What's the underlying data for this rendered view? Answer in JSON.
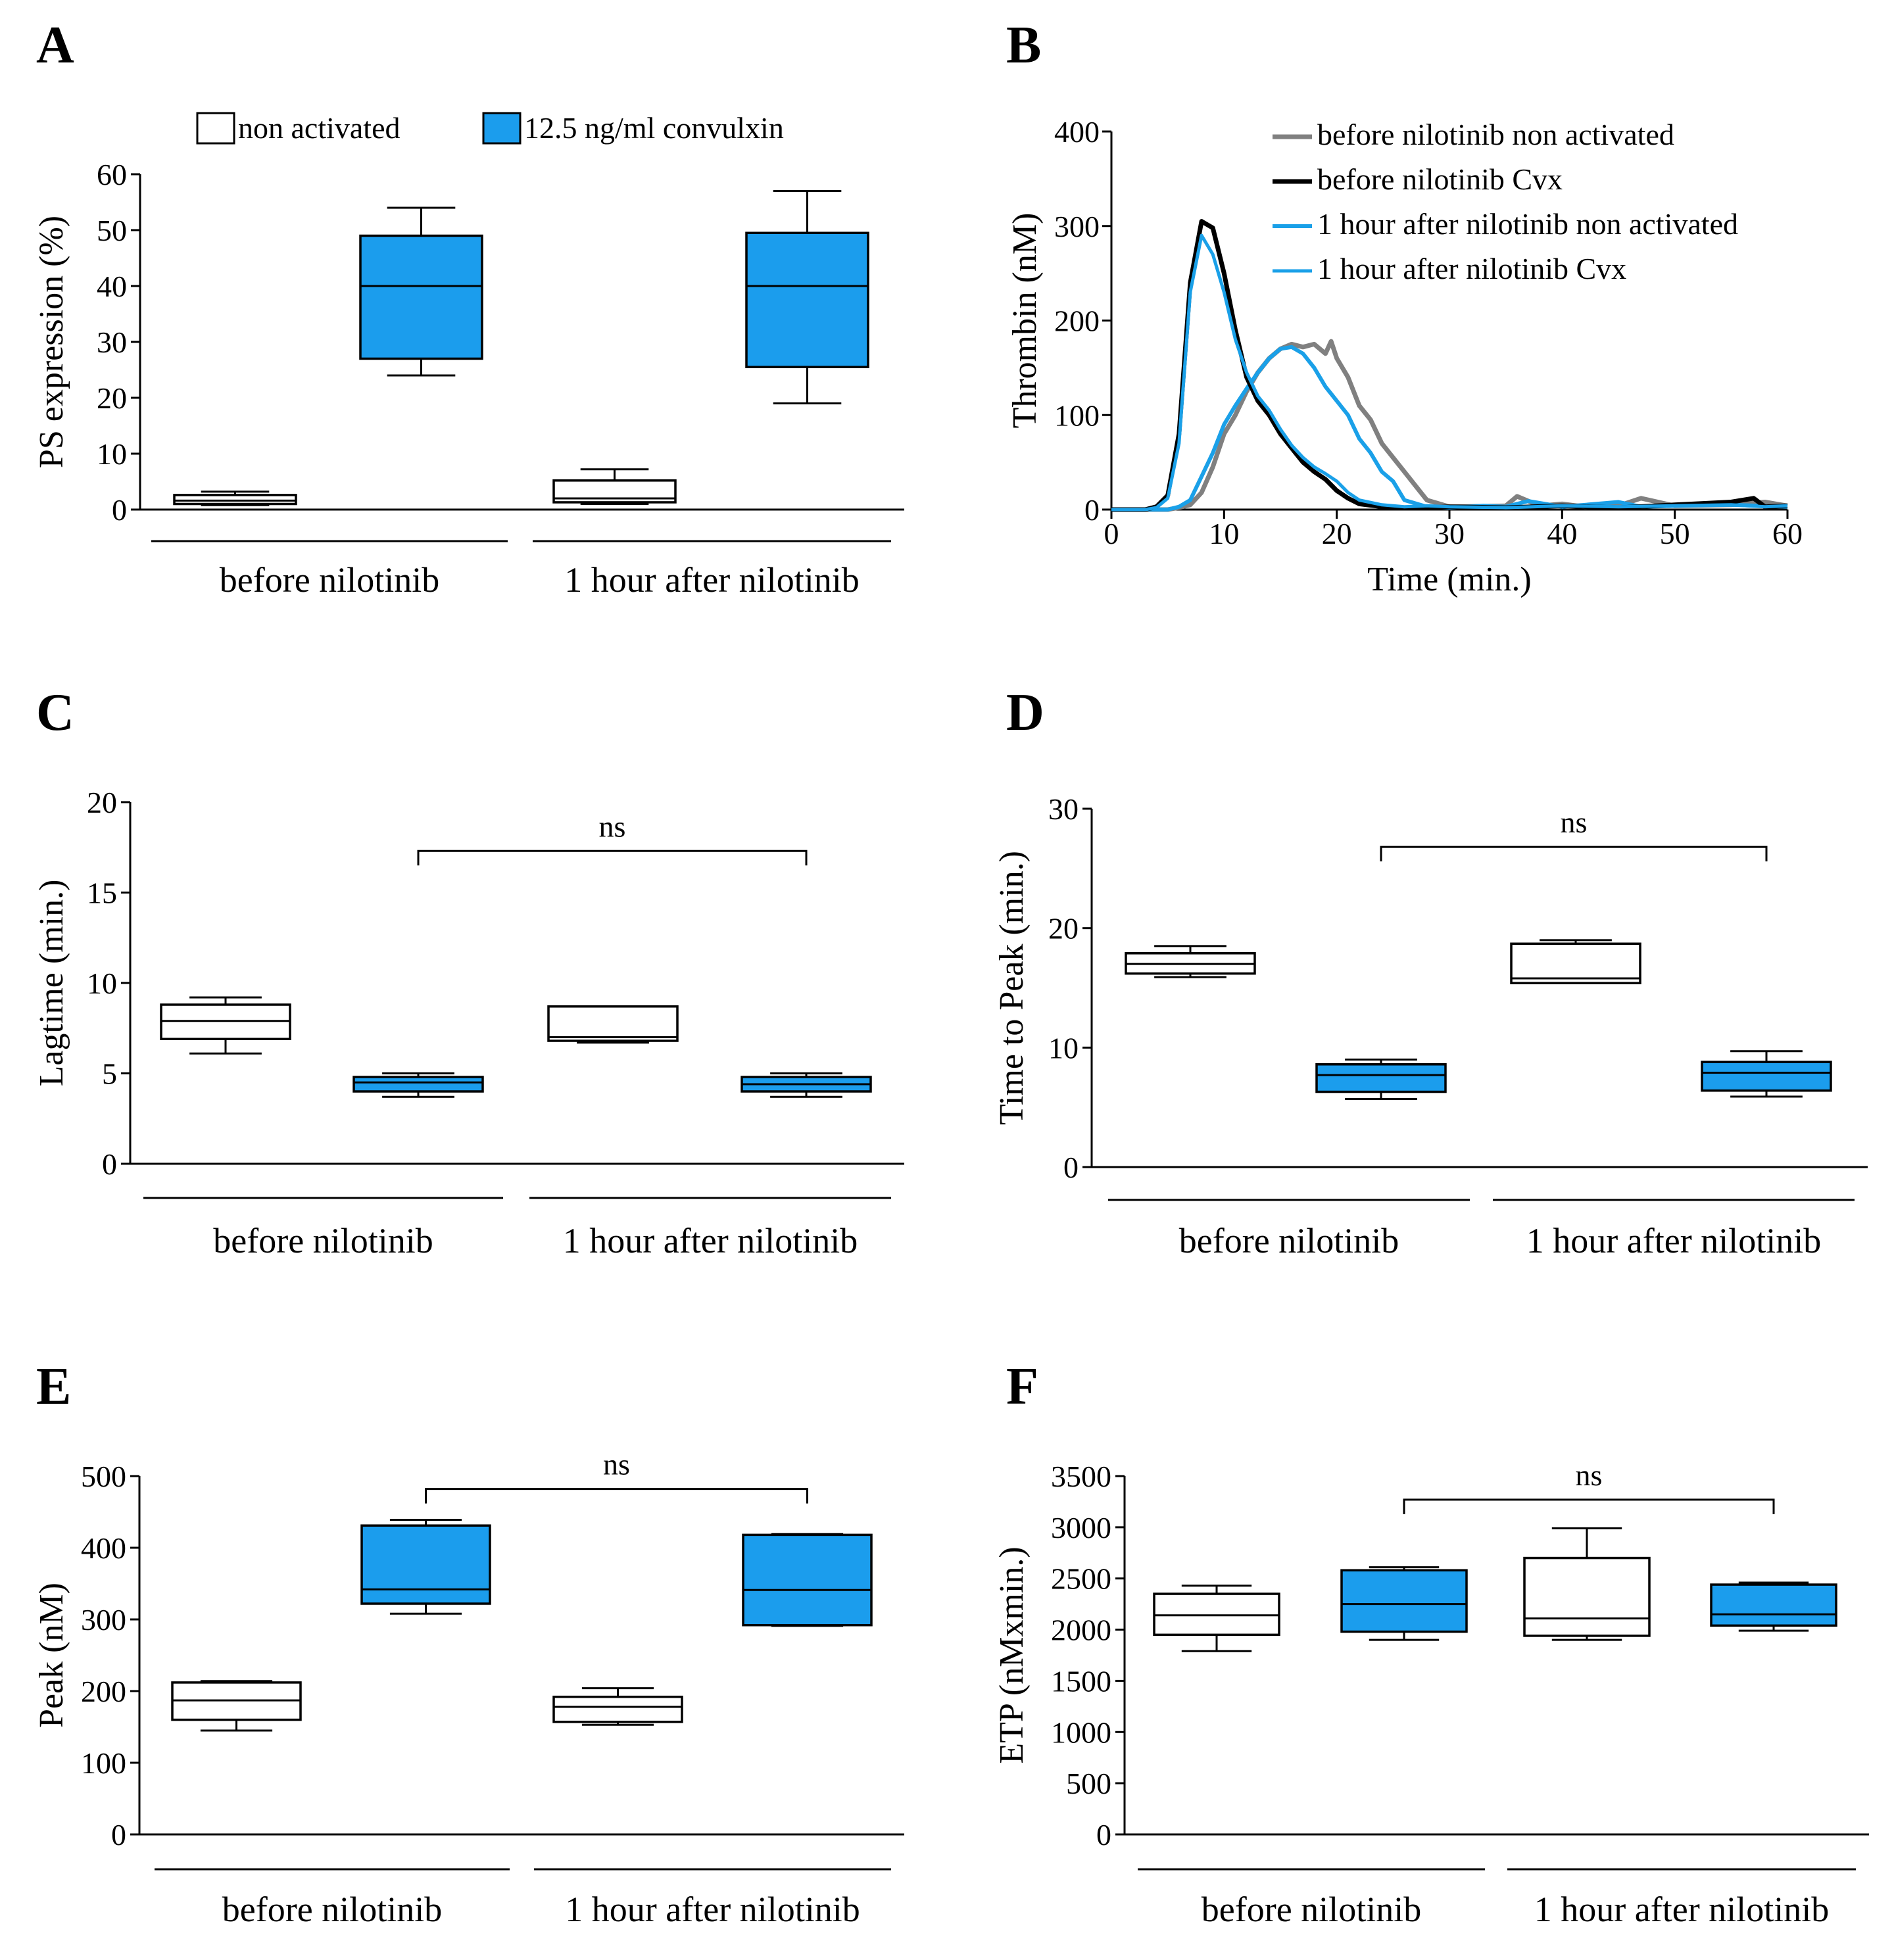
{
  "figure": {
    "colors": {
      "blue": "#1b9ded",
      "black": "#000000",
      "white": "#ffffff",
      "gray": "#808080",
      "line_blue": "#1aa0e8"
    }
  },
  "chart_data": [
    {
      "id": "A",
      "type": "box",
      "panel": "A",
      "ylabel": "PS expression (%)",
      "ylim": [
        0,
        60
      ],
      "yticks": [
        0,
        10,
        20,
        30,
        40,
        50,
        60
      ],
      "legend": [
        {
          "label": "non activated",
          "fill": "white"
        },
        {
          "label": "12.5 ng/ml convulxin",
          "fill": "blue"
        }
      ],
      "groups": [
        "before nilotinib",
        "1 hour after nilotinib"
      ],
      "boxes": [
        {
          "name": "before nilotinib non activated",
          "fill": "white",
          "min": 0.8,
          "q1": 1.0,
          "median": 1.6,
          "q3": 2.6,
          "max": 3.2
        },
        {
          "name": "before nilotinib convulxin",
          "fill": "blue",
          "min": 24,
          "q1": 27,
          "median": 40,
          "q3": 49,
          "max": 54
        },
        {
          "name": "1 hour after nilotinib non activated",
          "fill": "white",
          "min": 1,
          "q1": 1.3,
          "median": 2.0,
          "q3": 5.2,
          "max": 7.2
        },
        {
          "name": "1 hour after nilotinib convulxin",
          "fill": "blue",
          "min": 19,
          "q1": 25.5,
          "median": 40,
          "q3": 49.5,
          "max": 57
        }
      ]
    },
    {
      "id": "B",
      "type": "line",
      "panel": "B",
      "ylabel": "Thrombin (nM)",
      "xlabel": "Time (min.)",
      "xlim": [
        0,
        60
      ],
      "ylim": [
        0,
        400
      ],
      "xticks": [
        0,
        10,
        20,
        30,
        40,
        50,
        60
      ],
      "yticks": [
        0,
        100,
        200,
        300,
        400
      ],
      "series": [
        {
          "name": "before nilotinib non activated",
          "color": "gray",
          "width": 7,
          "x": [
            0,
            3,
            5,
            6,
            7,
            8,
            9,
            10,
            11,
            12,
            13,
            14,
            15,
            16,
            17,
            18,
            19,
            19.5,
            20,
            21,
            22,
            23,
            24,
            25,
            26,
            27,
            28,
            30,
            35,
            36,
            38,
            40,
            42,
            45,
            47,
            50,
            55,
            58,
            60
          ],
          "y": [
            0,
            0,
            0,
            2,
            5,
            18,
            45,
            80,
            100,
            125,
            145,
            160,
            170,
            175,
            172,
            175,
            165,
            178,
            160,
            140,
            110,
            95,
            70,
            55,
            40,
            25,
            10,
            3,
            4,
            14,
            4,
            6,
            3,
            4,
            12,
            4,
            5,
            8,
            4
          ]
        },
        {
          "name": "before nilotinib Cvx",
          "color": "black",
          "width": 7,
          "x": [
            0,
            3,
            4,
            5,
            6,
            7,
            8,
            9,
            10,
            11,
            12,
            13,
            14,
            15,
            16,
            17,
            18,
            19,
            20,
            21,
            22,
            24,
            26,
            28,
            30,
            35,
            40,
            45,
            50,
            55,
            57,
            58,
            60
          ],
          "y": [
            0,
            0,
            3,
            15,
            80,
            240,
            305,
            298,
            250,
            190,
            140,
            115,
            100,
            80,
            65,
            50,
            40,
            32,
            20,
            12,
            6,
            3,
            2,
            2,
            3,
            2,
            4,
            2,
            5,
            8,
            12,
            3,
            4
          ]
        },
        {
          "name": "1 hour after nilotinib non activated",
          "color": "line_blue",
          "width": 6,
          "x": [
            0,
            3,
            5,
            6,
            7,
            8,
            9,
            10,
            11,
            12,
            13,
            14,
            15,
            16,
            17,
            18,
            19,
            20,
            21,
            22,
            23,
            24,
            25,
            26,
            28,
            30,
            33,
            35,
            37,
            40,
            45,
            47,
            50,
            55,
            60
          ],
          "y": [
            0,
            0,
            0,
            3,
            10,
            35,
            60,
            90,
            110,
            128,
            145,
            160,
            170,
            172,
            165,
            150,
            130,
            115,
            100,
            75,
            60,
            40,
            30,
            10,
            3,
            2,
            4,
            3,
            9,
            3,
            8,
            3,
            4,
            5,
            3
          ]
        },
        {
          "name": "1 hour after nilotinib Cvx",
          "color": "line_blue",
          "width": 5,
          "x": [
            0,
            3,
            4,
            5,
            6,
            7,
            8,
            9,
            10,
            11,
            12,
            13,
            14,
            15,
            16,
            17,
            18,
            19,
            20,
            21,
            22,
            24,
            26,
            28,
            30,
            35,
            40,
            45,
            50,
            55,
            58,
            60
          ],
          "y": [
            0,
            0,
            2,
            12,
            70,
            230,
            290,
            270,
            230,
            180,
            145,
            120,
            105,
            85,
            68,
            55,
            45,
            38,
            30,
            18,
            10,
            5,
            3,
            4,
            3,
            2,
            4,
            3,
            4,
            5,
            3,
            4
          ]
        }
      ]
    },
    {
      "id": "C",
      "type": "box",
      "panel": "C",
      "ylabel": "Lagtime (min.)",
      "ylim": [
        0,
        20
      ],
      "yticks": [
        0,
        5,
        10,
        15,
        20
      ],
      "groups": [
        "before nilotinib",
        "1 hour after nilotinib"
      ],
      "annotation": {
        "text": "ns",
        "from_box": 1,
        "to_box": 3,
        "level": 17.3
      },
      "boxes": [
        {
          "name": "before nilotinib non activated",
          "fill": "white",
          "min": 6.1,
          "q1": 6.9,
          "median": 7.9,
          "q3": 8.8,
          "max": 9.2
        },
        {
          "name": "before nilotinib convulxin",
          "fill": "blue",
          "min": 3.7,
          "q1": 4.0,
          "median": 4.5,
          "q3": 4.8,
          "max": 5.0
        },
        {
          "name": "1 hour after nilotinib non activated",
          "fill": "white",
          "min": 6.7,
          "q1": 6.8,
          "median": 7.0,
          "q3": 8.7,
          "max": 8.7
        },
        {
          "name": "1 hour after nilotinib convulxin",
          "fill": "blue",
          "min": 3.7,
          "q1": 4.0,
          "median": 4.4,
          "q3": 4.8,
          "max": 5.0
        }
      ]
    },
    {
      "id": "D",
      "type": "box",
      "panel": "D",
      "ylabel": "Time to Peak (min.)",
      "ylim": [
        0,
        30
      ],
      "yticks": [
        0,
        10,
        20,
        30
      ],
      "groups": [
        "before nilotinib",
        "1 hour after nilotinib"
      ],
      "annotation": {
        "text": "ns",
        "from_box": 1,
        "to_box": 3,
        "level": 26.8
      },
      "boxes": [
        {
          "name": "before nilotinib non activated",
          "fill": "white",
          "min": 15.9,
          "q1": 16.2,
          "median": 17.0,
          "q3": 17.9,
          "max": 18.5
        },
        {
          "name": "before nilotinib convulxin",
          "fill": "blue",
          "min": 5.7,
          "q1": 6.3,
          "median": 7.7,
          "q3": 8.6,
          "max": 9.0
        },
        {
          "name": "1 hour after nilotinib non activated",
          "fill": "white",
          "min": 15.4,
          "q1": 15.4,
          "median": 15.8,
          "q3": 18.7,
          "max": 19.0
        },
        {
          "name": "1 hour after nilotinib convulxin",
          "fill": "blue",
          "min": 5.9,
          "q1": 6.4,
          "median": 7.9,
          "q3": 8.8,
          "max": 9.7
        }
      ]
    },
    {
      "id": "E",
      "type": "box",
      "panel": "E",
      "ylabel": "Peak (nM)",
      "ylim": [
        0,
        500
      ],
      "yticks": [
        0,
        100,
        200,
        300,
        400,
        500
      ],
      "groups": [
        "before nilotinib",
        "1 hour after nilotinib"
      ],
      "annotation": {
        "text": "ns",
        "from_box": 1,
        "to_box": 3,
        "level": 482
      },
      "boxes": [
        {
          "name": "before nilotinib non activated",
          "fill": "white",
          "min": 145,
          "q1": 160,
          "median": 187,
          "q3": 212,
          "max": 214
        },
        {
          "name": "before nilotinib convulxin",
          "fill": "blue",
          "min": 308,
          "q1": 322,
          "median": 342,
          "q3": 431,
          "max": 439
        },
        {
          "name": "1 hour after nilotinib non activated",
          "fill": "white",
          "min": 153,
          "q1": 157,
          "median": 178,
          "q3": 192,
          "max": 204
        },
        {
          "name": "1 hour after nilotinib convulxin",
          "fill": "blue",
          "min": 291,
          "q1": 292,
          "median": 341,
          "q3": 418,
          "max": 419
        }
      ]
    },
    {
      "id": "F",
      "type": "box",
      "panel": "F",
      "ylabel": "ETP (nMxmin.)",
      "ylim": [
        0,
        3500
      ],
      "yticks": [
        0,
        500,
        1000,
        1500,
        2000,
        2500,
        3000,
        3500
      ],
      "groups": [
        "before nilotinib",
        "1 hour after nilotinib"
      ],
      "annotation": {
        "text": "ns",
        "from_box": 1,
        "to_box": 3,
        "level": 3270
      },
      "boxes": [
        {
          "name": "before nilotinib non activated",
          "fill": "white",
          "min": 1790,
          "q1": 1950,
          "median": 2140,
          "q3": 2350,
          "max": 2430
        },
        {
          "name": "before nilotinib convulxin",
          "fill": "blue",
          "min": 1900,
          "q1": 1980,
          "median": 2250,
          "q3": 2580,
          "max": 2610
        },
        {
          "name": "1 hour after nilotinib non activated",
          "fill": "white",
          "min": 1900,
          "q1": 1940,
          "median": 2110,
          "q3": 2700,
          "max": 2990
        },
        {
          "name": "1 hour after nilotinib convulxin",
          "fill": "blue",
          "min": 1990,
          "q1": 2040,
          "median": 2150,
          "q3": 2440,
          "max": 2460
        }
      ]
    }
  ]
}
